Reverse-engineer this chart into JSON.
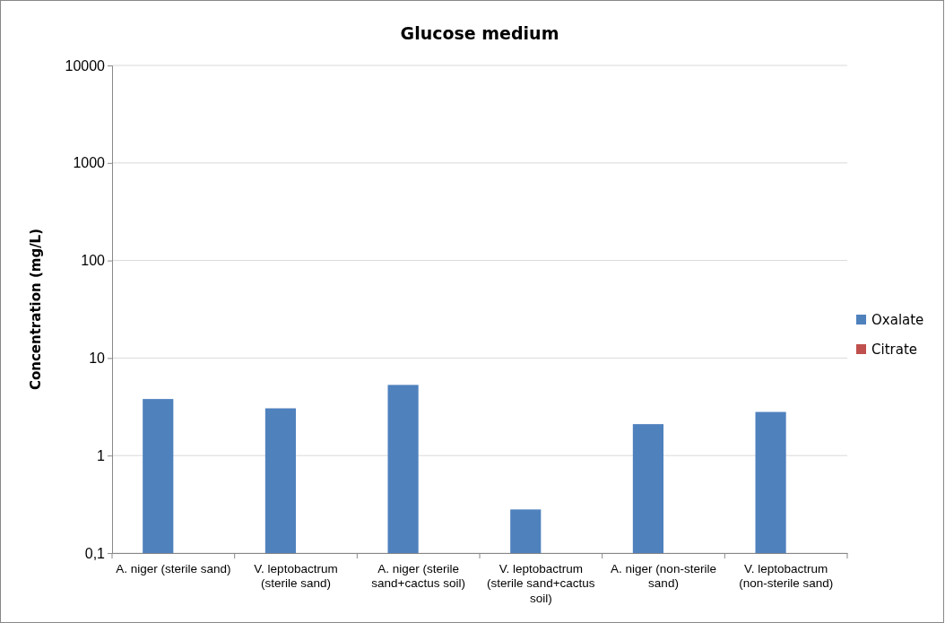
{
  "chart_data": {
    "type": "bar",
    "title": "Glucose medium",
    "ylabel": "Concentration (mg/L)",
    "categories": [
      "A. niger (sterile sand)",
      "V. leptobactrum (sterile sand)",
      "A. niger (sterile sand+cactus soil)",
      "V. leptobactrum (sterile sand+cactus soil)",
      "A. niger (non-sterile sand)",
      "V. leptobactrum (non-sterile sand)"
    ],
    "series": [
      {
        "name": "Oxalate",
        "color": "#4f81bd",
        "values": [
          3.8,
          3.05,
          5.3,
          0.28,
          2.1,
          2.8
        ]
      },
      {
        "name": "Citrate",
        "color": "#c0504d",
        "values": [
          null,
          null,
          null,
          null,
          null,
          null
        ]
      }
    ],
    "log": true,
    "ylim": [
      0.1,
      10000
    ],
    "yticks": [
      {
        "value": 0.1,
        "label": "0,1"
      },
      1,
      10,
      100,
      1000,
      10000
    ],
    "grid": "y",
    "legend": "right"
  }
}
